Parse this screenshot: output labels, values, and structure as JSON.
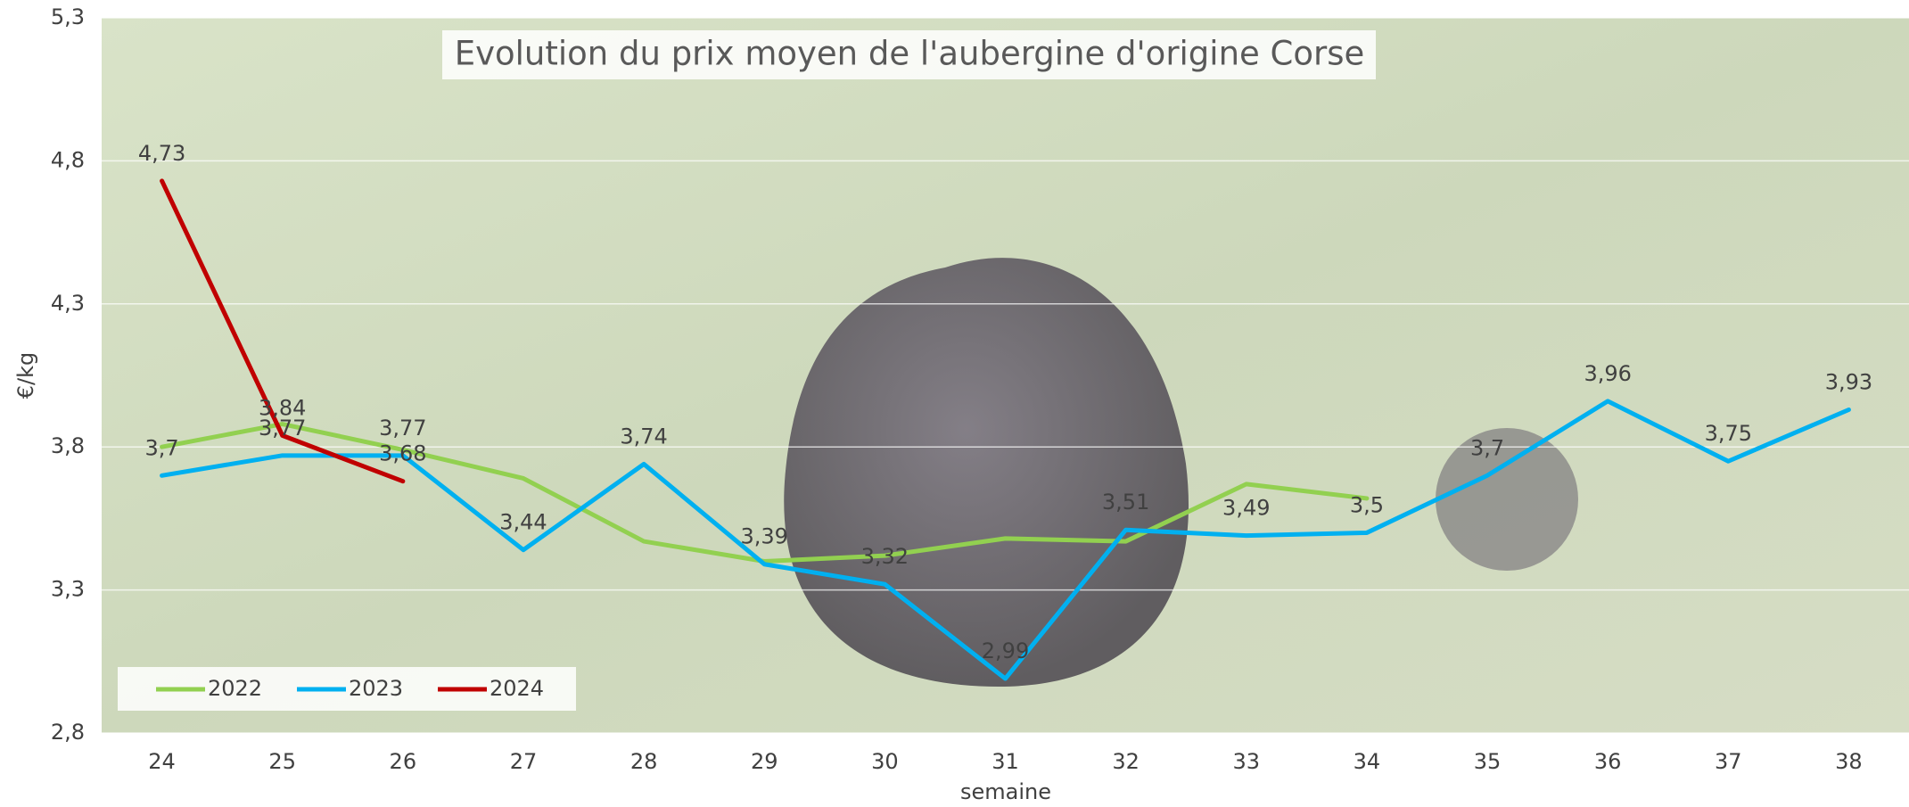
{
  "chart_data": {
    "type": "line",
    "title": "Evolution du prix moyen de l'aubergine d'origine Corse",
    "x_label": "semaine",
    "y_label": "€/kg",
    "categories": [
      "24",
      "25",
      "26",
      "27",
      "28",
      "29",
      "30",
      "31",
      "32",
      "33",
      "34",
      "35",
      "36",
      "37",
      "38"
    ],
    "series": [
      {
        "name": "2022",
        "color": "#92d050",
        "values": [
          3.8,
          3.88,
          3.79,
          3.69,
          3.47,
          3.4,
          3.42,
          3.48,
          3.47,
          3.67,
          3.62,
          null,
          null,
          null,
          null
        ]
      },
      {
        "name": "2023",
        "color": "#00b0f0",
        "values": [
          3.7,
          3.77,
          3.77,
          3.44,
          3.74,
          3.39,
          3.32,
          2.99,
          3.51,
          3.49,
          3.5,
          3.7,
          3.96,
          3.75,
          3.93
        ],
        "value_labels": [
          "3,7",
          "3,77",
          "3,77",
          "3,44",
          "3,74",
          "3,39",
          "3,32",
          "2,99",
          "3,51",
          "3,49",
          "3,5",
          "3,7",
          "3,96",
          "3,75",
          "3,93"
        ]
      },
      {
        "name": "2024",
        "color": "#c00000",
        "values": [
          4.73,
          3.84,
          3.68,
          null,
          null,
          null,
          null,
          null,
          null,
          null,
          null,
          null,
          null,
          null,
          null
        ],
        "value_labels": [
          "4,73",
          "3,84",
          "3,68",
          null,
          null,
          null,
          null,
          null,
          null,
          null,
          null,
          null,
          null,
          null,
          null
        ]
      }
    ],
    "ylim": [
      2.8,
      5.3
    ],
    "yticks": [
      {
        "value": 2.8,
        "label": "2,8"
      },
      {
        "value": 3.3,
        "label": "3,3"
      },
      {
        "value": 3.8,
        "label": "3,8"
      },
      {
        "value": 4.3,
        "label": "4,3"
      },
      {
        "value": 4.8,
        "label": "4,8"
      },
      {
        "value": 5.3,
        "label": "5,3"
      }
    ],
    "grid": true,
    "legend": "bottom-left"
  }
}
